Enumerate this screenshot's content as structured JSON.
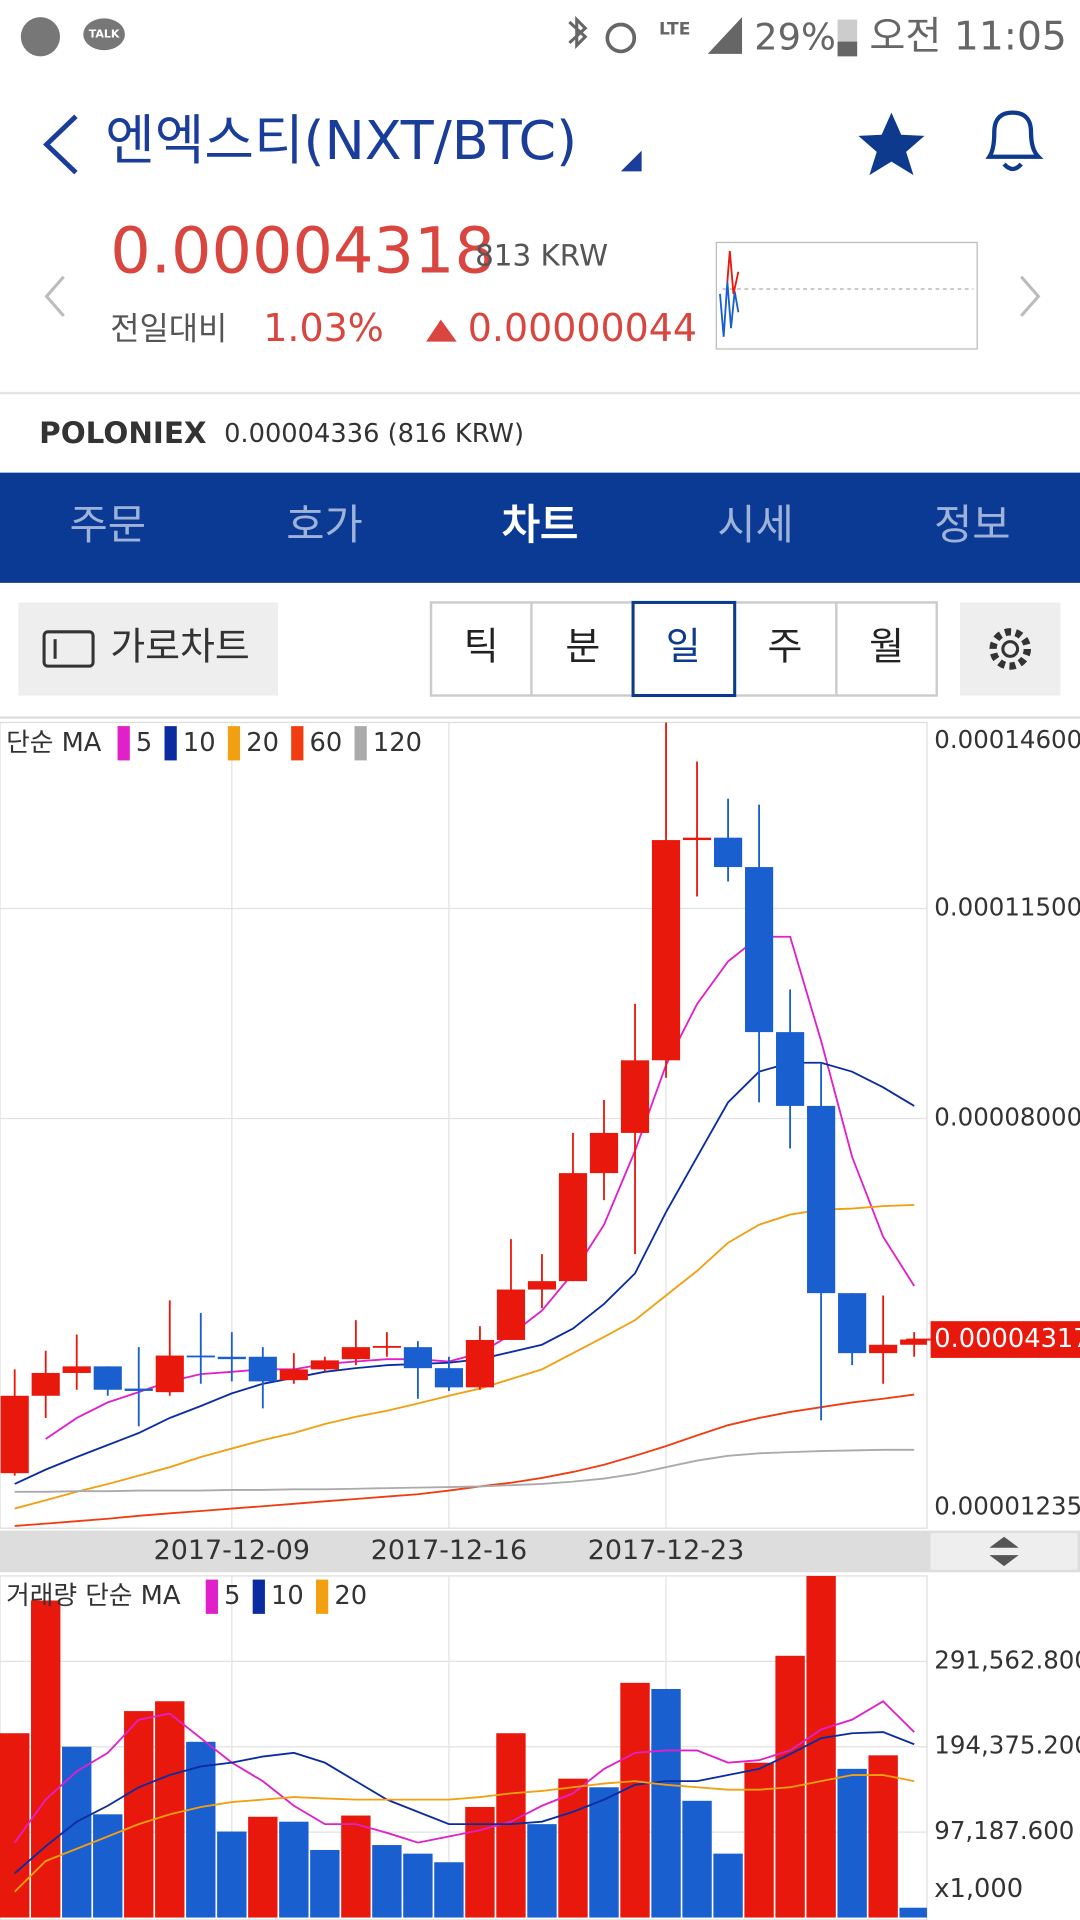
{
  "status_bar": {
    "talk": "TALK",
    "network": "LTE",
    "battery": "29%",
    "time": "오전 11:05"
  },
  "header": {
    "title": "엔엑스티(NXT/BTC)"
  },
  "price": {
    "value": "0.00004318",
    "krw": "813 KRW",
    "change_label": "전일대비",
    "change_pct": "1.03%",
    "change_abs": "0.00000044"
  },
  "exchange": {
    "name": "POLONIEX",
    "price": "0.00004336 (816 KRW)"
  },
  "tabs": [
    "주문",
    "호가",
    "차트",
    "시세",
    "정보"
  ],
  "landscape_button": "가로차트",
  "periods": [
    "틱",
    "분",
    "일",
    "주",
    "월"
  ],
  "chart_data": [
    {
      "type": "candlestick",
      "legend_title": "단순 MA",
      "grid": true,
      "up_color": "#e8190c",
      "down_color": "#1a5fd0",
      "categories": [
        null,
        null,
        null,
        null,
        null,
        null,
        null,
        "2017-12-09",
        null,
        null,
        null,
        null,
        null,
        null,
        "2017-12-16",
        null,
        null,
        null,
        null,
        null,
        null,
        "2017-12-23",
        null,
        null,
        null,
        null,
        null,
        null,
        null,
        null
      ],
      "open": [
        2.09e-05,
        3.38e-05,
        3.76e-05,
        3.87e-05,
        3.5e-05,
        3.44e-05,
        4.05e-05,
        4.03e-05,
        4.03e-05,
        3.64e-05,
        3.82e-05,
        3.99e-05,
        4.19e-05,
        4.19e-05,
        3.84e-05,
        3.52e-05,
        4.31e-05,
        5.15e-05,
        5.29e-05,
        7.09e-05,
        7.76e-05,
        8.97e-05,
        0.0001264,
        0.0001268,
        0.0001219,
        9.44e-05,
        8.21e-05,
        5.09e-05,
        4.09e-05,
        4.23e-05
      ],
      "high": [
        3.82e-05,
        4.13e-05,
        4.4e-05,
        3.87e-05,
        4.19e-05,
        4.97e-05,
        4.76e-05,
        4.44e-05,
        4.19e-05,
        4.09e-05,
        4.03e-05,
        4.64e-05,
        4.44e-05,
        4.29e-05,
        4.03e-05,
        4.54e-05,
        5.99e-05,
        5.74e-05,
        7.76e-05,
        8.31e-05,
        9.91e-05,
        0.000146,
        0.0001395,
        0.0001333,
        0.0001323,
        0.0001015,
        8.93e-05,
        5.09e-05,
        5.05e-05,
        4.44e-05
      ],
      "low": [
        2.05e-05,
        3.01e-05,
        3.48e-05,
        3.38e-05,
        2.87e-05,
        3.38e-05,
        3.58e-05,
        3.62e-05,
        3.17e-05,
        3.58e-05,
        3.78e-05,
        3.89e-05,
        4.03e-05,
        3.33e-05,
        3.46e-05,
        3.48e-05,
        4.31e-05,
        4.84e-05,
        5.29e-05,
        6.64e-05,
        5.74e-05,
        8.68e-05,
        0.000117,
        0.0001195,
        8.27e-05,
        7.5e-05,
        2.97e-05,
        3.89e-05,
        3.58e-05,
        4.03e-05
      ],
      "close": [
        3.38e-05,
        3.76e-05,
        3.87e-05,
        3.48e-05,
        3.46e-05,
        4.05e-05,
        4.03e-05,
        3.99e-05,
        3.62e-05,
        3.82e-05,
        3.97e-05,
        4.19e-05,
        4.21e-05,
        3.84e-05,
        3.52e-05,
        4.31e-05,
        5.15e-05,
        5.29e-05,
        7.09e-05,
        7.76e-05,
        8.97e-05,
        0.0001264,
        0.0001268,
        0.0001219,
        9.44e-05,
        8.21e-05,
        5.09e-05,
        4.09e-05,
        4.23e-05,
        4.317e-05
      ],
      "series": [
        {
          "name": "5",
          "color": "#e020c8",
          "values": [
            null,
            2.66e-05,
            3.01e-05,
            3.27e-05,
            3.44e-05,
            3.62e-05,
            3.74e-05,
            3.78e-05,
            3.82e-05,
            3.82e-05,
            3.91e-05,
            3.95e-05,
            3.99e-05,
            3.99e-05,
            3.95e-05,
            4.09e-05,
            4.4e-05,
            4.8e-05,
            5.42e-05,
            6.23e-05,
            7.46e-05,
            8.89e-05,
            9.91e-05,
            0.0001062,
            0.0001103,
            0.0001103,
            9.29e-05,
            7.36e-05,
            6.03e-05,
            5.21e-05
          ]
        },
        {
          "name": "10",
          "color": "#0a2ca0",
          "values": [
            1.91e-05,
            2.15e-05,
            2.36e-05,
            2.56e-05,
            2.76e-05,
            3.01e-05,
            3.21e-05,
            3.42e-05,
            3.58e-05,
            3.68e-05,
            3.78e-05,
            3.84e-05,
            3.89e-05,
            3.91e-05,
            3.93e-05,
            3.99e-05,
            4.11e-05,
            4.23e-05,
            4.5e-05,
            4.91e-05,
            5.42e-05,
            6.44e-05,
            7.36e-05,
            8.27e-05,
            8.78e-05,
            8.93e-05,
            8.93e-05,
            8.78e-05,
            8.52e-05,
            8.21e-05
          ]
        },
        {
          "name": "20",
          "color": "#f0a010",
          "values": [
            1.5e-05,
            1.64e-05,
            1.78e-05,
            1.91e-05,
            2.05e-05,
            2.19e-05,
            2.36e-05,
            2.5e-05,
            2.64e-05,
            2.76e-05,
            2.91e-05,
            3.03e-05,
            3.13e-05,
            3.25e-05,
            3.38e-05,
            3.5e-05,
            3.66e-05,
            3.82e-05,
            4.09e-05,
            4.36e-05,
            4.64e-05,
            5.05e-05,
            5.46e-05,
            5.93e-05,
            6.23e-05,
            6.4e-05,
            6.48e-05,
            6.5e-05,
            6.54e-05,
            6.56e-05
          ]
        },
        {
          "name": "60",
          "color": "#f03c10",
          "values": [
            1.21e-05,
            1.25e-05,
            1.29e-05,
            1.33e-05,
            1.38e-05,
            1.42e-05,
            1.46e-05,
            1.5e-05,
            1.54e-05,
            1.58e-05,
            1.62e-05,
            1.66e-05,
            1.7e-05,
            1.74e-05,
            1.8e-05,
            1.87e-05,
            1.93e-05,
            2.01e-05,
            2.11e-05,
            2.23e-05,
            2.38e-05,
            2.54e-05,
            2.72e-05,
            2.89e-05,
            3.01e-05,
            3.11e-05,
            3.19e-05,
            3.27e-05,
            3.33e-05,
            3.4e-05
          ]
        },
        {
          "name": "120",
          "color": "#aaaaaa",
          "values": [
            1.78e-05,
            1.78e-05,
            1.79e-05,
            1.79e-05,
            1.8e-05,
            1.8e-05,
            1.8e-05,
            1.81e-05,
            1.81e-05,
            1.82e-05,
            1.82e-05,
            1.83e-05,
            1.84e-05,
            1.85e-05,
            1.86e-05,
            1.87e-05,
            1.89e-05,
            1.91e-05,
            1.95e-05,
            2e-05,
            2.08e-05,
            2.19e-05,
            2.3e-05,
            2.38e-05,
            2.42e-05,
            2.44e-05,
            2.46e-05,
            2.47e-05,
            2.48e-05,
            2.48e-05
          ]
        }
      ],
      "ylim": [
        1.235e-05,
        0.000146
      ],
      "yticks": [
        1.235e-05,
        {
          "value": 8e-05,
          "label": "0.00008000"
        },
        {
          "value": 0.000115,
          "label": "0.00011500"
        },
        {
          "value": 0.000146,
          "label": "0.00014600"
        }
      ],
      "current_price": 4.317e-05
    },
    {
      "type": "bar",
      "legend_title": "거래량 단순 MA",
      "grid": true,
      "unit_label": "x1,000",
      "values": [
        209760,
        360790,
        194380,
        117470,
        234930,
        246120,
        199970,
        97890,
        114670,
        109080,
        76910,
        116070,
        82510,
        72720,
        62930,
        125860,
        209760,
        106280,
        158020,
        148230,
        267090,
        260100,
        132850,
        72720,
        176200,
        297860,
        388750,
        169210,
        184590,
        11190
      ],
      "colors": [
        "#e8190c",
        "#e8190c",
        "#1a5fd0",
        "#1a5fd0",
        "#e8190c",
        "#e8190c",
        "#1a5fd0",
        "#1a5fd0",
        "#e8190c",
        "#1a5fd0",
        "#1a5fd0",
        "#e8190c",
        "#1a5fd0",
        "#1a5fd0",
        "#1a5fd0",
        "#e8190c",
        "#e8190c",
        "#1a5fd0",
        "#e8190c",
        "#1a5fd0",
        "#e8190c",
        "#1a5fd0",
        "#1a5fd0",
        "#1a5fd0",
        "#e8190c",
        "#e8190c",
        "#e8190c",
        "#1a5fd0",
        "#e8190c",
        "#1a5fd0"
      ],
      "series": [
        {
          "name": "5",
          "color": "#e020c8",
          "values": [
            85300,
            134250,
            166410,
            187390,
            225140,
            232130,
            204170,
            176200,
            155220,
            127250,
            106280,
            106280,
            96490,
            85300,
            92290,
            99290,
            109080,
            127250,
            141240,
            169210,
            187390,
            190180,
            190180,
            176200,
            178990,
            190180,
            213960,
            225140,
            246120,
            211160
          ]
        },
        {
          "name": "10",
          "color": "#0a2ca0",
          "values": [
            50340,
            81110,
            109080,
            127250,
            148230,
            162210,
            172000,
            176200,
            183190,
            187390,
            176200,
            155220,
            134250,
            120260,
            106280,
            106280,
            106280,
            109080,
            120260,
            134250,
            151030,
            155220,
            155220,
            162210,
            169210,
            185990,
            204170,
            209760,
            211160,
            197170
          ]
        },
        {
          "name": "20",
          "color": "#f0a010",
          "values": [
            29370,
            64330,
            78310,
            92290,
            106280,
            117470,
            125860,
            131450,
            134250,
            137040,
            135640,
            134250,
            134250,
            134250,
            134250,
            137040,
            141240,
            144040,
            148230,
            152430,
            155220,
            151030,
            148230,
            145430,
            145430,
            148230,
            155220,
            162210,
            162210,
            155220
          ]
        }
      ],
      "ylim": [
        0,
        388750.4
      ],
      "yticks": [
        {
          "value": 97187.6,
          "label": "97,187.600"
        },
        {
          "value": 194375.2,
          "label": "194,375.200"
        },
        {
          "value": 291562.8,
          "label": "291,562.800"
        }
      ]
    }
  ]
}
